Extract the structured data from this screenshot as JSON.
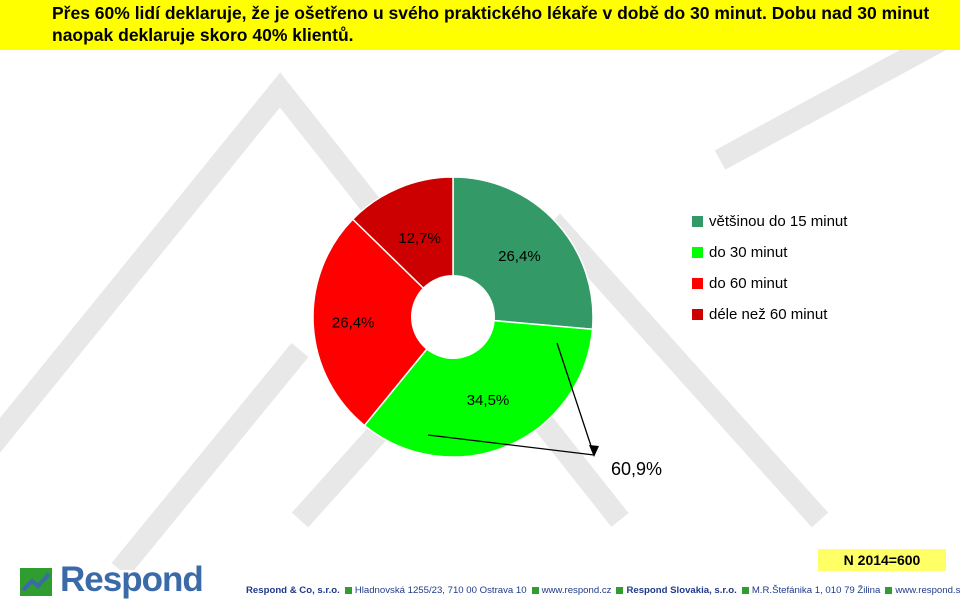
{
  "title": "Přes 60% lidí deklaruje, že je ošetřeno u svého praktického lékaře v době do 30 minut. Dobu nad 30 minut naopak deklaruje skoro 40% klientů.",
  "chart_data": {
    "type": "pie",
    "categories": [
      "většinou do 15 minut",
      "do 30 minut",
      "do 60 minut",
      "déle než 60 minut"
    ],
    "values": [
      26.4,
      34.5,
      26.4,
      12.7
    ],
    "value_labels": [
      "26,4%",
      "34,5%",
      "26,4%",
      "12,7%"
    ],
    "colors": [
      "#339966",
      "#00ff00",
      "#ff0000",
      "#cc0000"
    ],
    "donut": true,
    "legend_position": "right",
    "annotation": "60,9%"
  },
  "sample_note": "N 2014=600",
  "logo": {
    "text": "Respond"
  },
  "footer": {
    "company_cz": "Respond & Co, s.r.o.",
    "address_cz": "Hladnovská 1255/23, 710 00  Ostrava 10",
    "web_cz": "www.respond.cz",
    "company_sk": "Respond Slovakia, s.r.o.",
    "address_sk": "M.R.Štefánika 1, 010 79  Žilina",
    "web_sk": "www.respond.sk"
  }
}
